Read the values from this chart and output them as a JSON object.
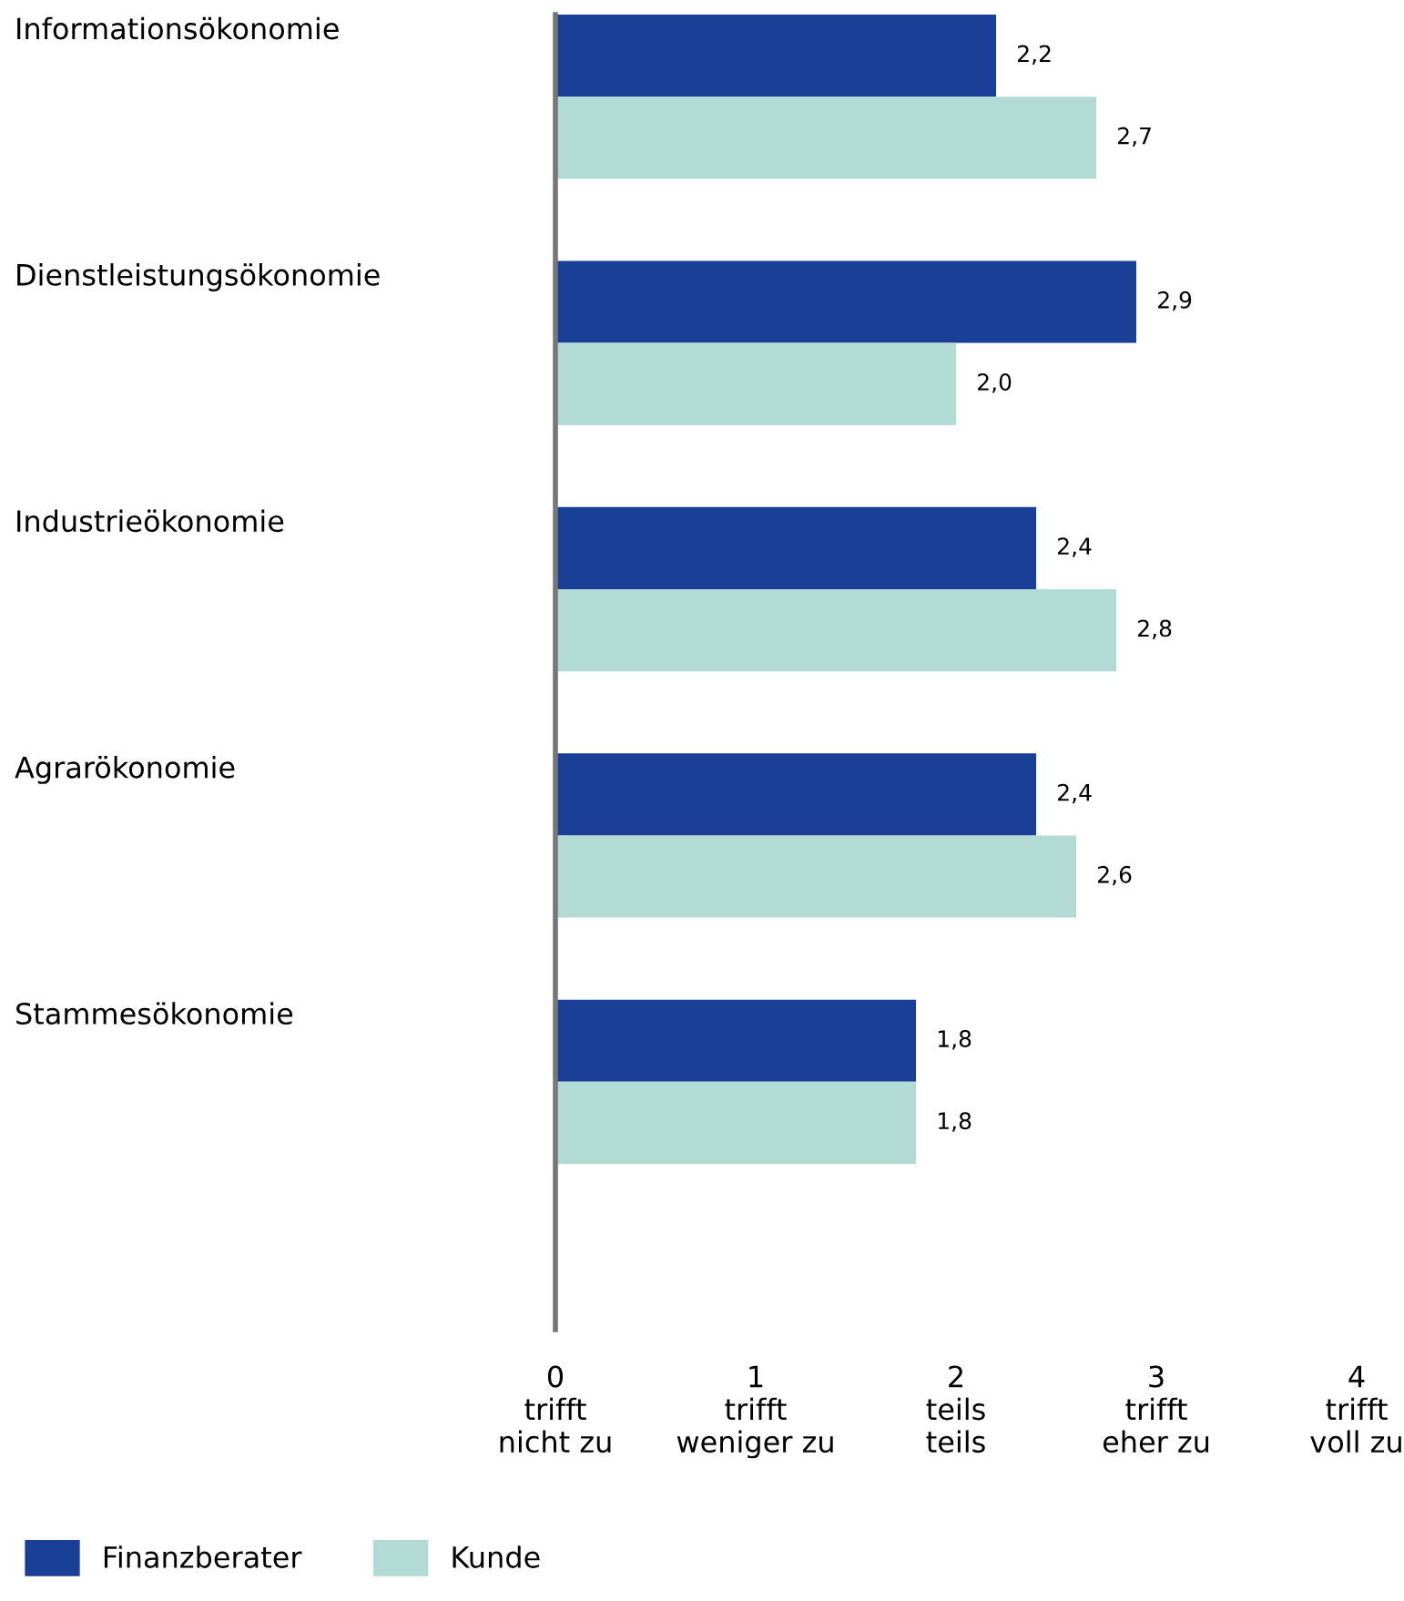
{
  "chart_data": {
    "type": "bar",
    "orientation": "horizontal",
    "categories": [
      "Informationsökonomie",
      "Dienstleistungsökonomie",
      "Industrieökonomie",
      "Agrarökonomie",
      "Stammesökonomie"
    ],
    "series": [
      {
        "name": "Finanzberater",
        "color": "#1a3f96",
        "values": [
          2.2,
          2.9,
          2.4,
          2.4,
          1.8
        ],
        "value_labels": [
          "2,2",
          "2,9",
          "2,4",
          "2,4",
          "1,8"
        ]
      },
      {
        "name": "Kunde",
        "color": "#b2dbd6",
        "values": [
          2.7,
          2.0,
          2.8,
          2.6,
          1.8
        ],
        "value_labels": [
          "2,7",
          "2,0",
          "2,8",
          "2,6",
          "1,8"
        ]
      }
    ],
    "xlim": [
      0,
      4
    ],
    "xticks": [
      {
        "value": 0,
        "label": "0\ntrifft\nnicht zu"
      },
      {
        "value": 1,
        "label": "1\ntrifft\nweniger zu"
      },
      {
        "value": 2,
        "label": "2\nteils\nteils"
      },
      {
        "value": 3,
        "label": "3\ntrifft\neher zu"
      },
      {
        "value": 4,
        "label": "4\ntrifft\nvoll zu"
      }
    ],
    "grid": false,
    "legend": "bottom left"
  }
}
